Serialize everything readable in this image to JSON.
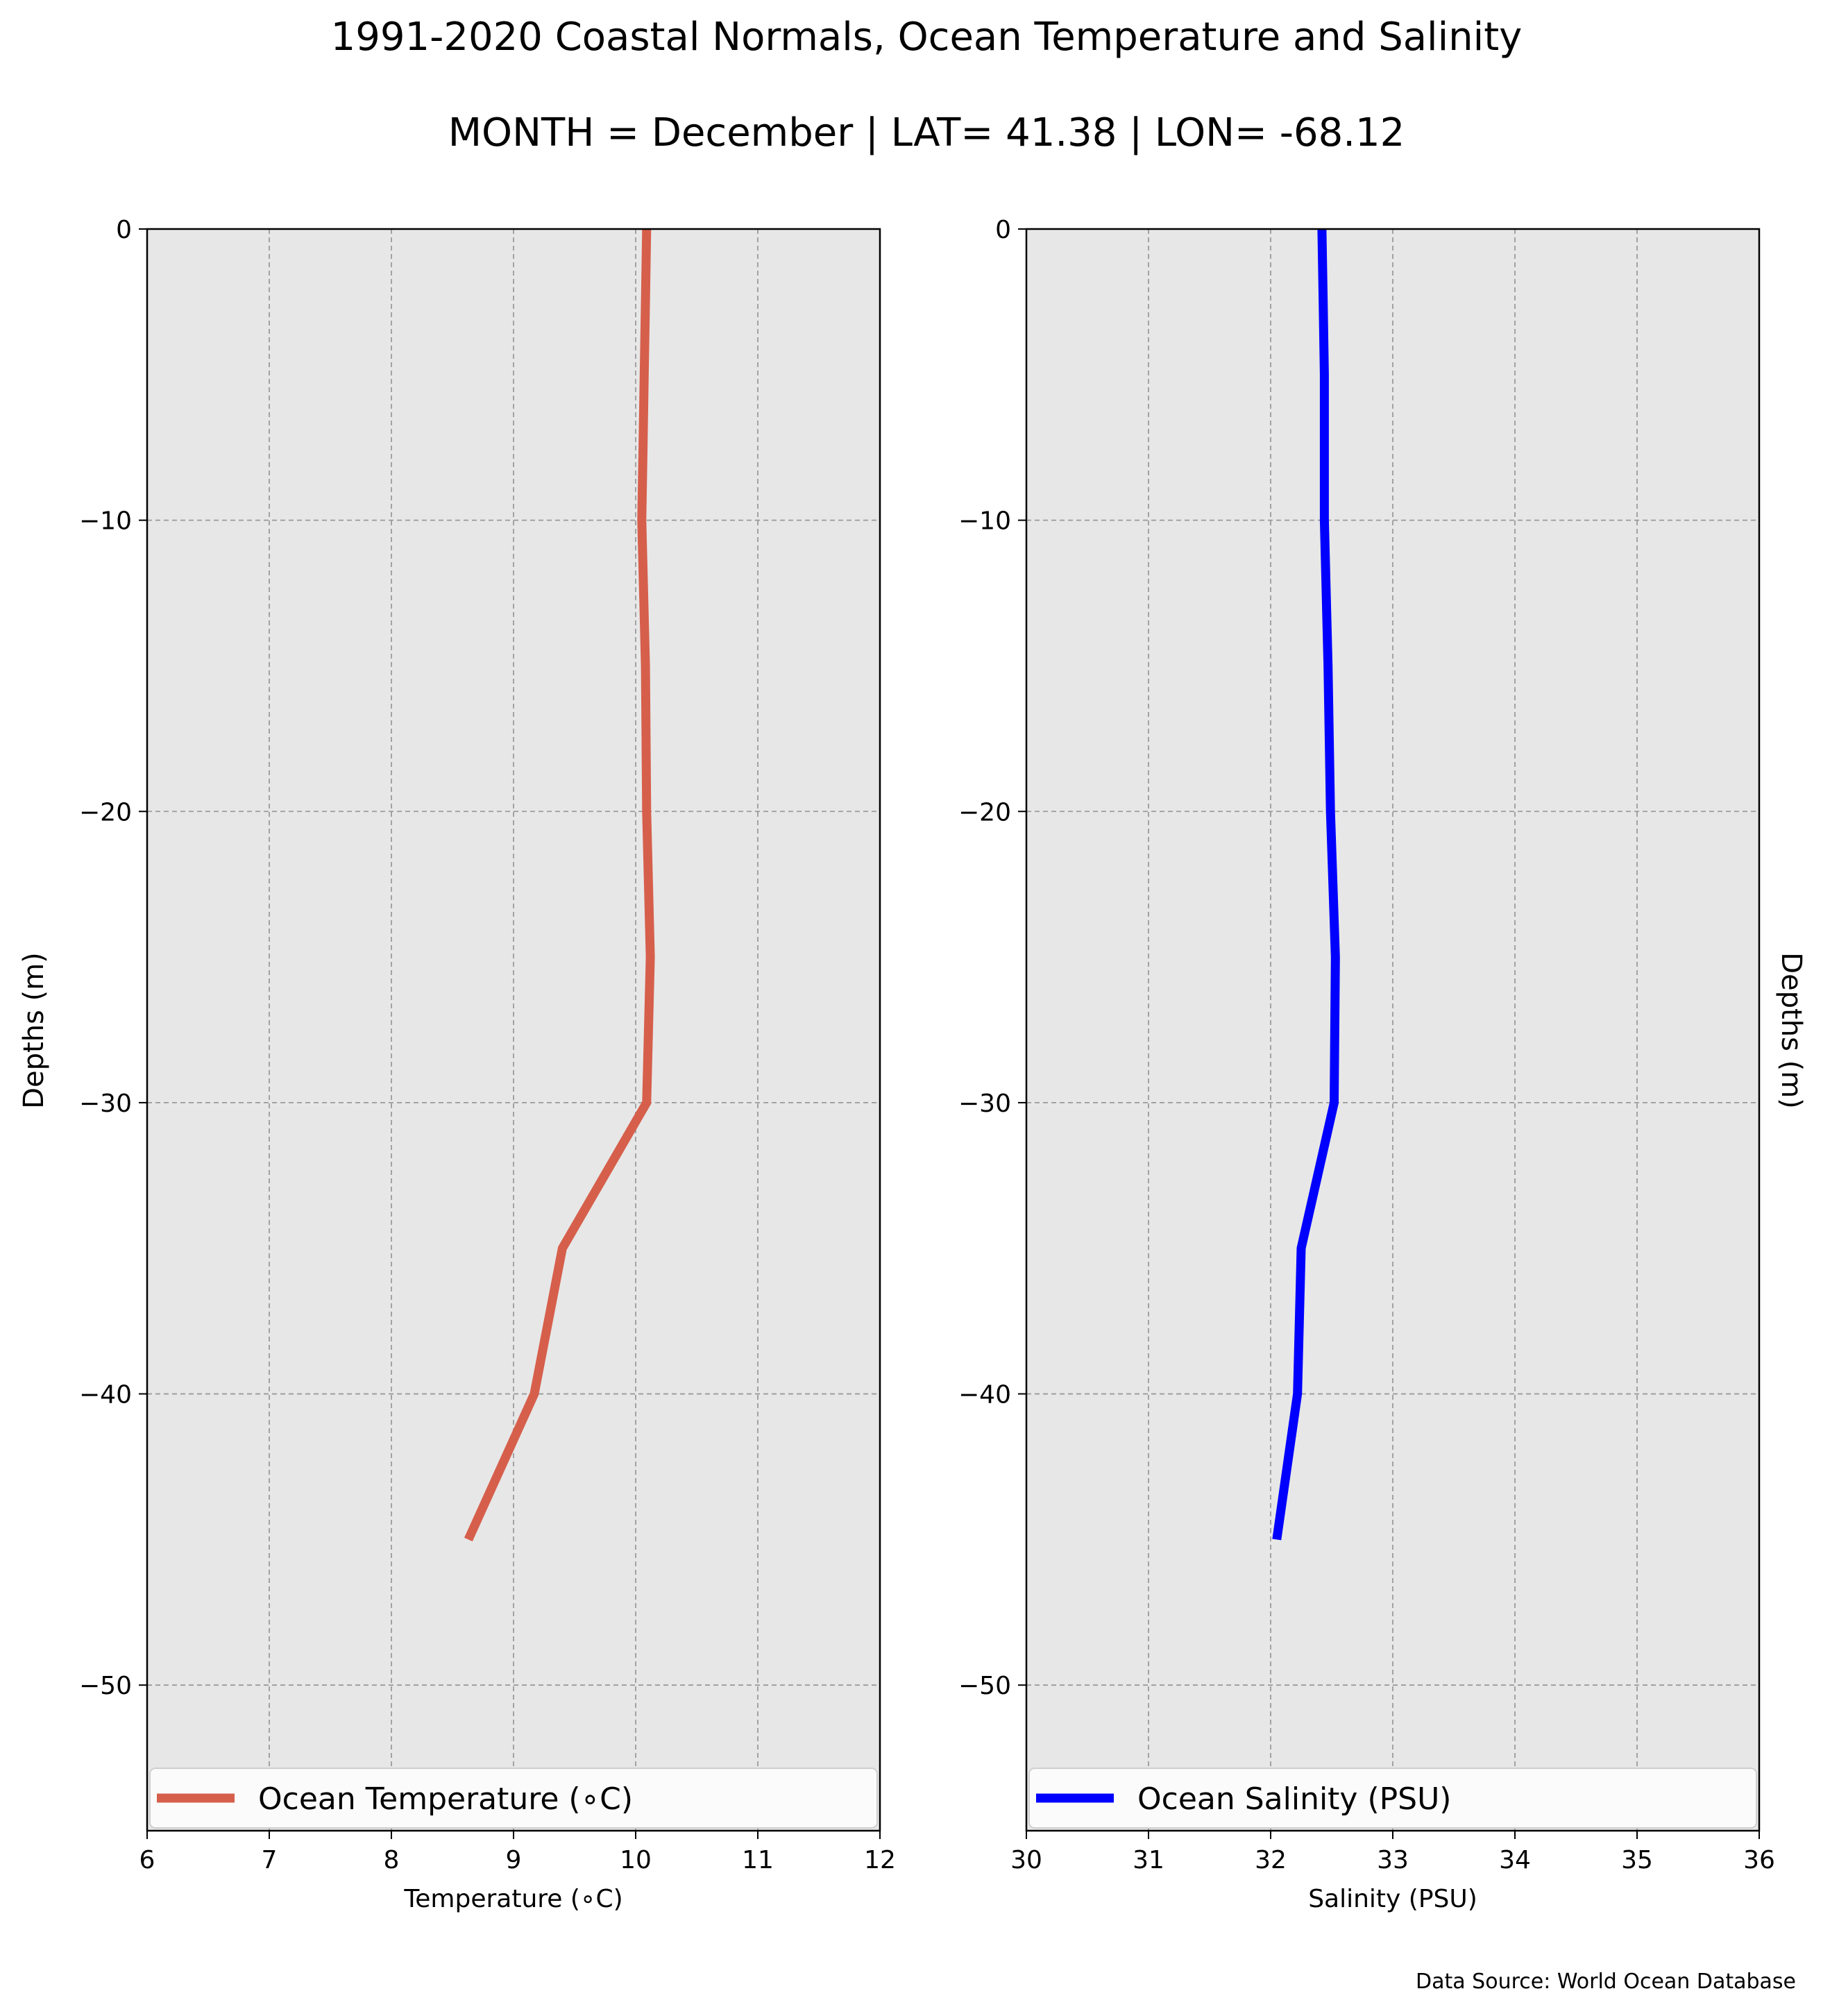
{
  "figure": {
    "title_line1": "1991-2020 Coastal Normals, Ocean Temperature and Salinity",
    "title_line2": "MONTH = December | LAT= 41.38 | LON= -68.12",
    "source_note": "Data Source: World Ocean Database"
  },
  "chart_data": [
    {
      "type": "line",
      "xlabel": "Temperature ($^\\circ$C)",
      "xlabel_display": "Temperature (∘C)",
      "ylabel": "Depths (m)",
      "xlim": [
        6,
        12
      ],
      "ylim": [
        -55,
        0
      ],
      "xticks": [
        6,
        7,
        8,
        9,
        10,
        11,
        12
      ],
      "yticks": [
        0,
        -10,
        -20,
        -30,
        -40,
        -50
      ],
      "ytick_labels": [
        "0",
        "−10",
        "−20",
        "−30",
        "−40",
        "−50"
      ],
      "grid": true,
      "legend_position": "bottom",
      "series": [
        {
          "name": "Ocean Temperature (∘C)",
          "color": "#d65f4c",
          "x": [
            10.09,
            10.08,
            10.07,
            10.06,
            10.05,
            10.08,
            10.09,
            10.12,
            10.09,
            9.4,
            9.17,
            8.63
          ],
          "y": [
            0,
            -2.5,
            -5,
            -7.5,
            -10,
            -15,
            -20,
            -25,
            -30,
            -35,
            -40,
            -45
          ]
        }
      ]
    },
    {
      "type": "line",
      "xlabel": "Salinity (PSU)",
      "ylabel": "Depths (m)",
      "xlim": [
        30,
        36
      ],
      "ylim": [
        -55,
        0
      ],
      "xticks": [
        30,
        31,
        32,
        33,
        34,
        35,
        36
      ],
      "yticks": [
        0,
        -10,
        -20,
        -30,
        -40,
        -50
      ],
      "ytick_labels": [
        "0",
        "−10",
        "−20",
        "−30",
        "−40",
        "−50"
      ],
      "grid": true,
      "legend_position": "bottom",
      "series": [
        {
          "name": "Ocean Salinity (PSU)",
          "color": "#0000ff",
          "x": [
            32.42,
            32.43,
            32.44,
            32.44,
            32.44,
            32.47,
            32.49,
            32.53,
            32.52,
            32.25,
            32.22,
            32.05
          ],
          "y": [
            0,
            -2.5,
            -5,
            -7.5,
            -10,
            -15,
            -20,
            -25,
            -30,
            -35,
            -40,
            -45
          ]
        }
      ]
    }
  ]
}
